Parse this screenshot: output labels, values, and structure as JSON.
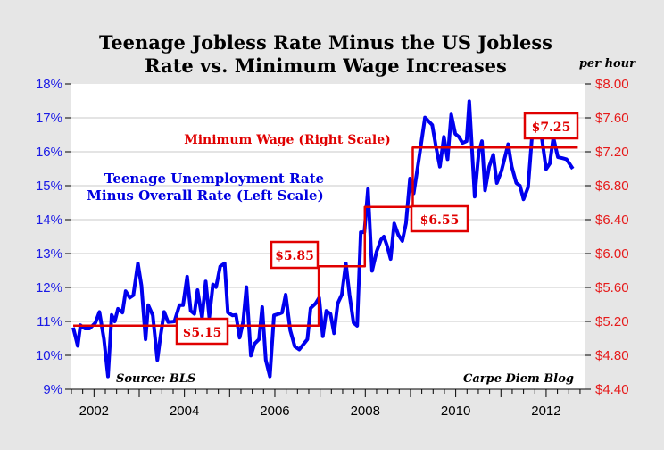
{
  "chart_data": {
    "type": "line",
    "title_lines": [
      "Teenage Jobless Rate Minus the US Jobless",
      "Rate vs. Minimum Wage Increases"
    ],
    "right_unit": "per hour",
    "xlim": [
      2001.5,
      2012.85
    ],
    "x_ticks": [
      "2002",
      "2004",
      "2006",
      "2008",
      "2010",
      "2012"
    ],
    "y_left": {
      "lim": [
        9,
        18
      ],
      "ticks": [
        "9%",
        "10%",
        "11%",
        "12%",
        "13%",
        "14%",
        "15%",
        "16%",
        "17%",
        "18%"
      ],
      "color": "#1a1ae6"
    },
    "y_right": {
      "lim": [
        4.4,
        8.0
      ],
      "ticks": [
        "$4.40",
        "$4.80",
        "$5.20",
        "$5.60",
        "$6.00",
        "$6.40",
        "$6.80",
        "$7.20",
        "$7.60",
        "$8.00"
      ],
      "color": "#e61a1a"
    },
    "grid": "horizontal",
    "series": [
      {
        "name": "Teenage Unemployment Rate Minus Overall Rate (Left Scale)",
        "axis": "left",
        "color": "#0000ee",
        "x": [
          2001.54,
          2001.64,
          2001.7,
          2001.8,
          2001.9,
          2002.03,
          2002.12,
          2002.22,
          2002.31,
          2002.39,
          2002.46,
          2002.53,
          2002.63,
          2002.7,
          2002.79,
          2002.87,
          2002.97,
          2003.05,
          2003.14,
          2003.2,
          2003.3,
          2003.4,
          2003.47,
          2003.55,
          2003.64,
          2003.78,
          2003.89,
          2003.97,
          2004.06,
          2004.14,
          2004.22,
          2004.29,
          2004.39,
          2004.47,
          2004.55,
          2004.63,
          2004.7,
          2004.79,
          2004.89,
          2004.96,
          2005.06,
          2005.14,
          2005.22,
          2005.3,
          2005.37,
          2005.47,
          2005.55,
          2005.65,
          2005.72,
          2005.8,
          2005.89,
          2005.98,
          2006.09,
          2006.16,
          2006.24,
          2006.34,
          2006.44,
          2006.54,
          2006.64,
          2006.72,
          2006.79,
          2006.9,
          2006.98,
          2007.06,
          2007.14,
          2007.23,
          2007.31,
          2007.39,
          2007.48,
          2007.57,
          2007.65,
          2007.74,
          2007.82,
          2007.9,
          2007.98,
          2008.06,
          2008.15,
          2008.25,
          2008.35,
          2008.41,
          2008.48,
          2008.56,
          2008.64,
          2008.73,
          2008.82,
          2008.9,
          2008.99,
          2009.07,
          2009.17,
          2009.32,
          2009.48,
          2009.56,
          2009.65,
          2009.74,
          2009.82,
          2009.9,
          2009.99,
          2010.07,
          2010.15,
          2010.24,
          2010.3,
          2010.42,
          2010.51,
          2010.58,
          2010.65,
          2010.74,
          2010.83,
          2010.91,
          2011.01,
          2011.16,
          2011.24,
          2011.34,
          2011.42,
          2011.5,
          2011.6,
          2011.71,
          2011.83,
          2011.91,
          2012.0,
          2012.08,
          2012.16,
          2012.26,
          2012.36,
          2012.45,
          2012.59
        ],
        "values": [
          10.82,
          10.28,
          10.89,
          10.79,
          10.79,
          10.96,
          11.28,
          10.47,
          9.38,
          11.19,
          11.0,
          11.37,
          11.26,
          11.89,
          11.7,
          11.77,
          12.71,
          12.05,
          10.47,
          11.48,
          11.18,
          9.86,
          10.56,
          11.28,
          10.98,
          11.0,
          11.48,
          11.48,
          12.32,
          11.31,
          11.22,
          11.92,
          11.1,
          12.18,
          11.13,
          12.09,
          12.01,
          12.62,
          12.71,
          11.26,
          11.18,
          11.19,
          10.52,
          11.0,
          12.01,
          9.99,
          10.34,
          10.47,
          11.42,
          9.86,
          9.38,
          11.18,
          11.22,
          11.26,
          11.79,
          10.74,
          10.26,
          10.17,
          10.34,
          10.47,
          11.39,
          11.53,
          11.7,
          10.56,
          11.31,
          11.22,
          10.65,
          11.53,
          11.79,
          12.71,
          11.79,
          10.96,
          10.87,
          13.63,
          13.63,
          14.9,
          12.49,
          13.06,
          13.41,
          13.5,
          13.24,
          12.84,
          13.89,
          13.55,
          13.37,
          13.89,
          15.21,
          14.77,
          15.65,
          17.01,
          16.79,
          16.18,
          15.56,
          16.44,
          15.78,
          17.1,
          16.53,
          16.44,
          16.26,
          16.31,
          17.49,
          14.68,
          16.0,
          16.31,
          14.86,
          15.56,
          15.91,
          15.08,
          15.43,
          16.22,
          15.56,
          15.08,
          15.0,
          14.6,
          14.95,
          16.83,
          16.83,
          16.35,
          15.49,
          15.65,
          16.42,
          15.84,
          15.81,
          15.78,
          15.5
        ]
      },
      {
        "name": "Minimum Wage (Right Scale)",
        "axis": "right",
        "color": "#e00000",
        "step": true,
        "x": [
          2001.54,
          2006.97,
          2007.99,
          2009.05,
          2012.7
        ],
        "values": [
          5.15,
          5.85,
          6.55,
          7.25,
          7.25
        ]
      }
    ],
    "annotations": {
      "wage_labels": [
        "$5.15",
        "$5.85",
        "$6.55",
        "$7.25"
      ],
      "wage_series_label": "Minimum Wage (Right Scale)",
      "teen_series_label": [
        "Teenage Unemployment Rate",
        "Minus Overall Rate (Left Scale)"
      ],
      "source": "Source: BLS",
      "credit": "Carpe Diem Blog"
    }
  }
}
